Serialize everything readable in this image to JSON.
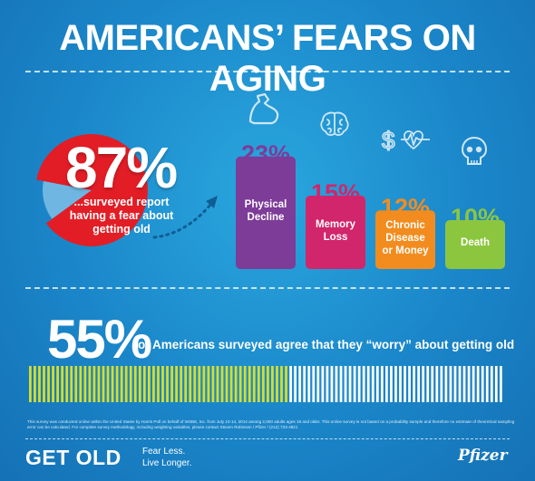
{
  "title": "AMERICANS’ FEARS ON AGING",
  "headline_stat": {
    "value": "87%",
    "caption": "...surveyed report having a fear about getting old",
    "fraction": 0.87
  },
  "colors": {
    "physical": "#7d3c98",
    "memory": "#d1266b",
    "chronic": "#f28c1e",
    "death": "#8cc63f",
    "pie_red": "#e31d25",
    "pie_blue": "#6fb7e2",
    "stripe_yellow": "#d7de2a",
    "stripe_white": "#ffffff"
  },
  "chart_data": [
    {
      "type": "pie",
      "values": [
        87,
        13
      ],
      "labels": [
        "87%",
        ""
      ]
    },
    {
      "type": "bar",
      "categories": [
        "Physical Decline",
        "Memory Loss",
        "Chronic Disease or Money",
        "Death"
      ],
      "values": [
        23,
        15,
        12,
        10
      ],
      "value_labels": [
        "23%",
        "15%",
        "12%",
        "10%"
      ],
      "category_labels": [
        "Physical\nDecline",
        "Memory\nLoss",
        "Chronic\nDisease\nor Money",
        "Death"
      ],
      "icons": [
        "flexed-arm-icon",
        "brain-icon",
        "dollar-heartbeat-icon",
        "skull-icon"
      ]
    },
    {
      "type": "bar",
      "values": [
        55,
        45
      ],
      "value_label": "55%",
      "caption": "of Americans surveyed agree that they “worry” about getting old"
    }
  ],
  "footnote": "This survey was conducted online within the United States by Harris Poll on behalf of WSBE, Inc. from July 10-14, 2014 among 2,000 adults ages 18 and older. This online survey is not based on a probability sample and therefore no estimate of theoretical sampling error can be calculated. For complete survey methodology, including weighting variables, please contact Steven Robinson / Pfizer / (212) 733-4821",
  "footer": {
    "logo": "GET OLD",
    "tagline_line1": "Fear Less.",
    "tagline_line2": "Live Longer.",
    "brand": "Pfizer"
  }
}
